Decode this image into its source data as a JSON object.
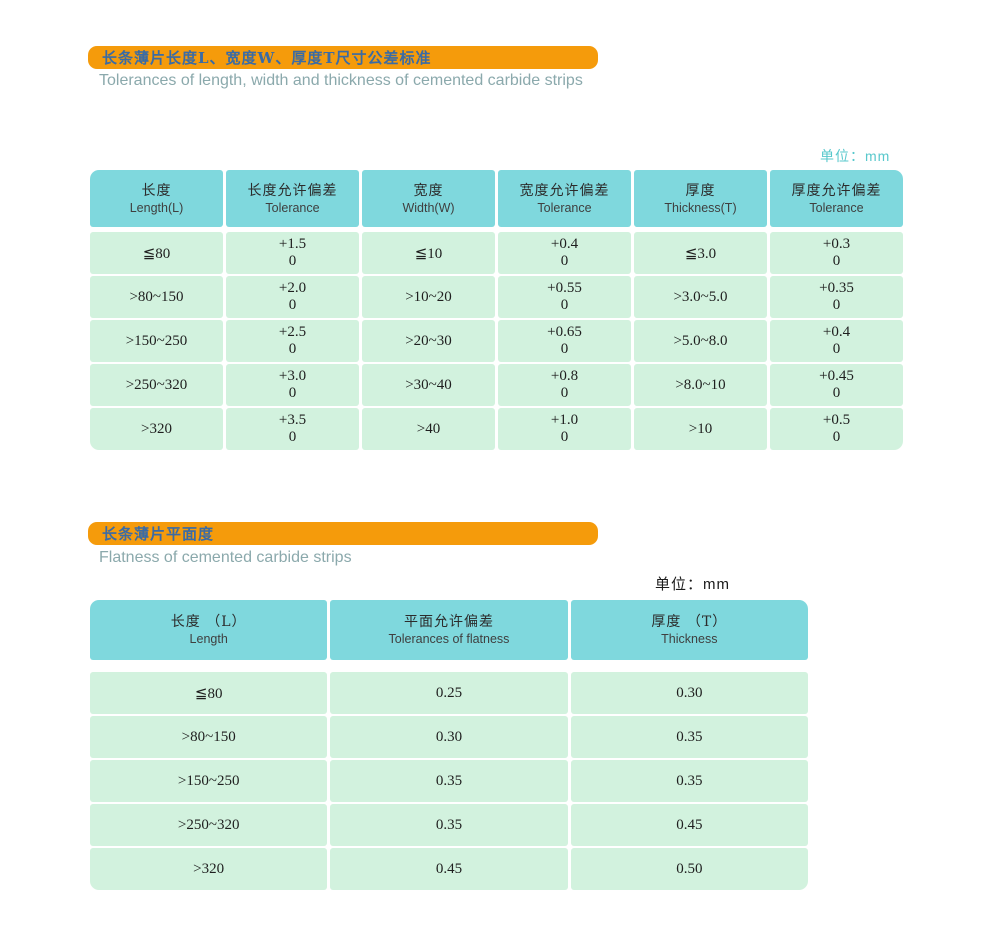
{
  "colors": {
    "bar_background": "#F59B0B",
    "bar_title_text": "#3A6BA5",
    "subtitle_text": "#8BA9AC",
    "header_cell": "#7FD8DD",
    "body_cell": "#D2F2DE",
    "unit_label_teal": "#58C8CC",
    "page_background": "#FFFFFF"
  },
  "section1": {
    "bar_title": "长条薄片长度L、宽度W、厚度T尺寸公差标准",
    "subtitle": "Tolerances of length, width and thickness of cemented carbide strips",
    "unit": "单位：mm",
    "table": {
      "headers": [
        {
          "zh": "长度",
          "en": "Length(L)"
        },
        {
          "zh": "长度允许偏差",
          "en": "Tolerance"
        },
        {
          "zh": "宽度",
          "en": "Width(W)"
        },
        {
          "zh": "宽度允许偏差",
          "en": "Tolerance"
        },
        {
          "zh": "厚度",
          "en": "Thickness(T)"
        },
        {
          "zh": "厚度允许偏差",
          "en": "Tolerance"
        }
      ],
      "rows": [
        [
          "≦80",
          {
            "top": "+1.5",
            "bottom": "0"
          },
          "≦10",
          {
            "top": "+0.4",
            "bottom": "0"
          },
          "≦3.0",
          {
            "top": "+0.3",
            "bottom": "0"
          }
        ],
        [
          ">80~150",
          {
            "top": "+2.0",
            "bottom": "0"
          },
          ">10~20",
          {
            "top": "+0.55",
            "bottom": "0"
          },
          ">3.0~5.0",
          {
            "top": "+0.35",
            "bottom": "0"
          }
        ],
        [
          ">150~250",
          {
            "top": "+2.5",
            "bottom": "0"
          },
          ">20~30",
          {
            "top": "+0.65",
            "bottom": "0"
          },
          ">5.0~8.0",
          {
            "top": "+0.4",
            "bottom": "0"
          }
        ],
        [
          ">250~320",
          {
            "top": "+3.0",
            "bottom": "0"
          },
          ">30~40",
          {
            "top": "+0.8",
            "bottom": "0"
          },
          ">8.0~10",
          {
            "top": "+0.45",
            "bottom": "0"
          }
        ],
        [
          ">320",
          {
            "top": "+3.5",
            "bottom": "0"
          },
          ">40",
          {
            "top": "+1.0",
            "bottom": "0"
          },
          ">10",
          {
            "top": "+0.5",
            "bottom": "0"
          }
        ]
      ]
    }
  },
  "section2": {
    "bar_title": "长条薄片平面度",
    "subtitle": "Flatness of cemented carbide strips",
    "unit": "单位：mm",
    "table": {
      "headers": [
        {
          "zh": "长度  （L）",
          "en": "Length"
        },
        {
          "zh": "平面允许偏差",
          "en": "Tolerances of flatness"
        },
        {
          "zh": "厚度  （T）",
          "en": "Thickness"
        }
      ],
      "rows": [
        [
          "≦80",
          "0.25",
          "0.30"
        ],
        [
          ">80~150",
          "0.30",
          "0.35"
        ],
        [
          ">150~250",
          "0.35",
          "0.35"
        ],
        [
          ">250~320",
          "0.35",
          "0.45"
        ],
        [
          ">320",
          "0.45",
          "0.50"
        ]
      ]
    }
  }
}
